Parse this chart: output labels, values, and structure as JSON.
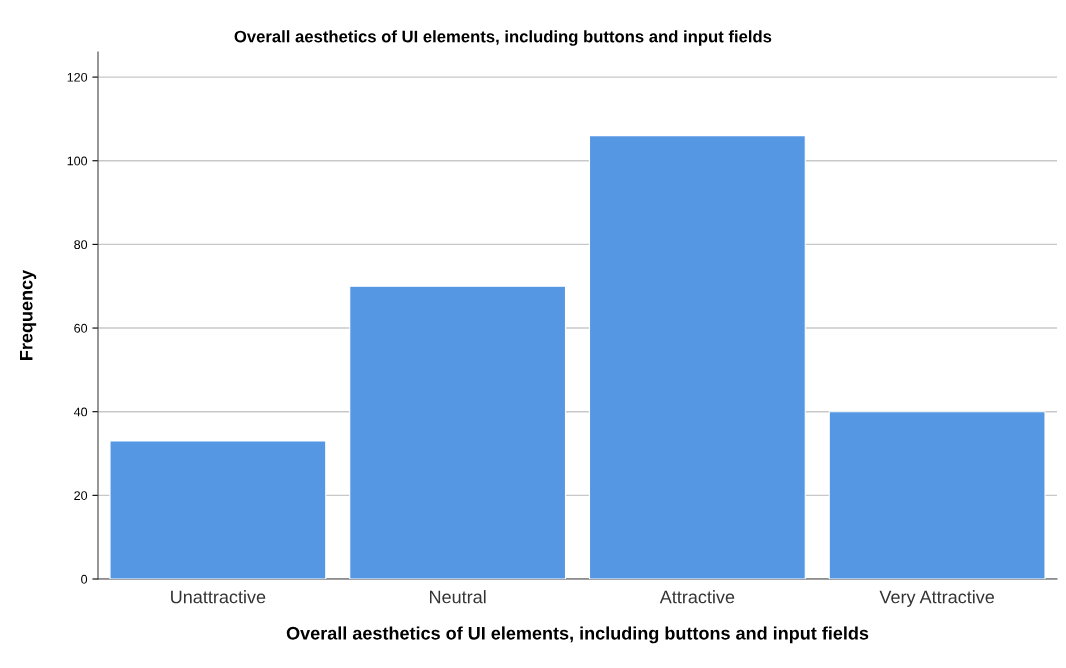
{
  "chart_data": {
    "type": "bar",
    "title": "Overall aesthetics of UI elements, including buttons and input fields",
    "xlabel": "Overall aesthetics of UI elements, including buttons and input fields",
    "ylabel": "Frequency",
    "categories": [
      "Unattractive",
      "Neutral",
      "Attractive",
      "Very Attractive"
    ],
    "values": [
      33,
      70,
      106,
      40
    ],
    "color": "#5597e3",
    "ylim": [
      0,
      126
    ],
    "yticks": [
      0,
      20,
      40,
      60,
      80,
      100,
      120
    ],
    "grid": "y"
  }
}
